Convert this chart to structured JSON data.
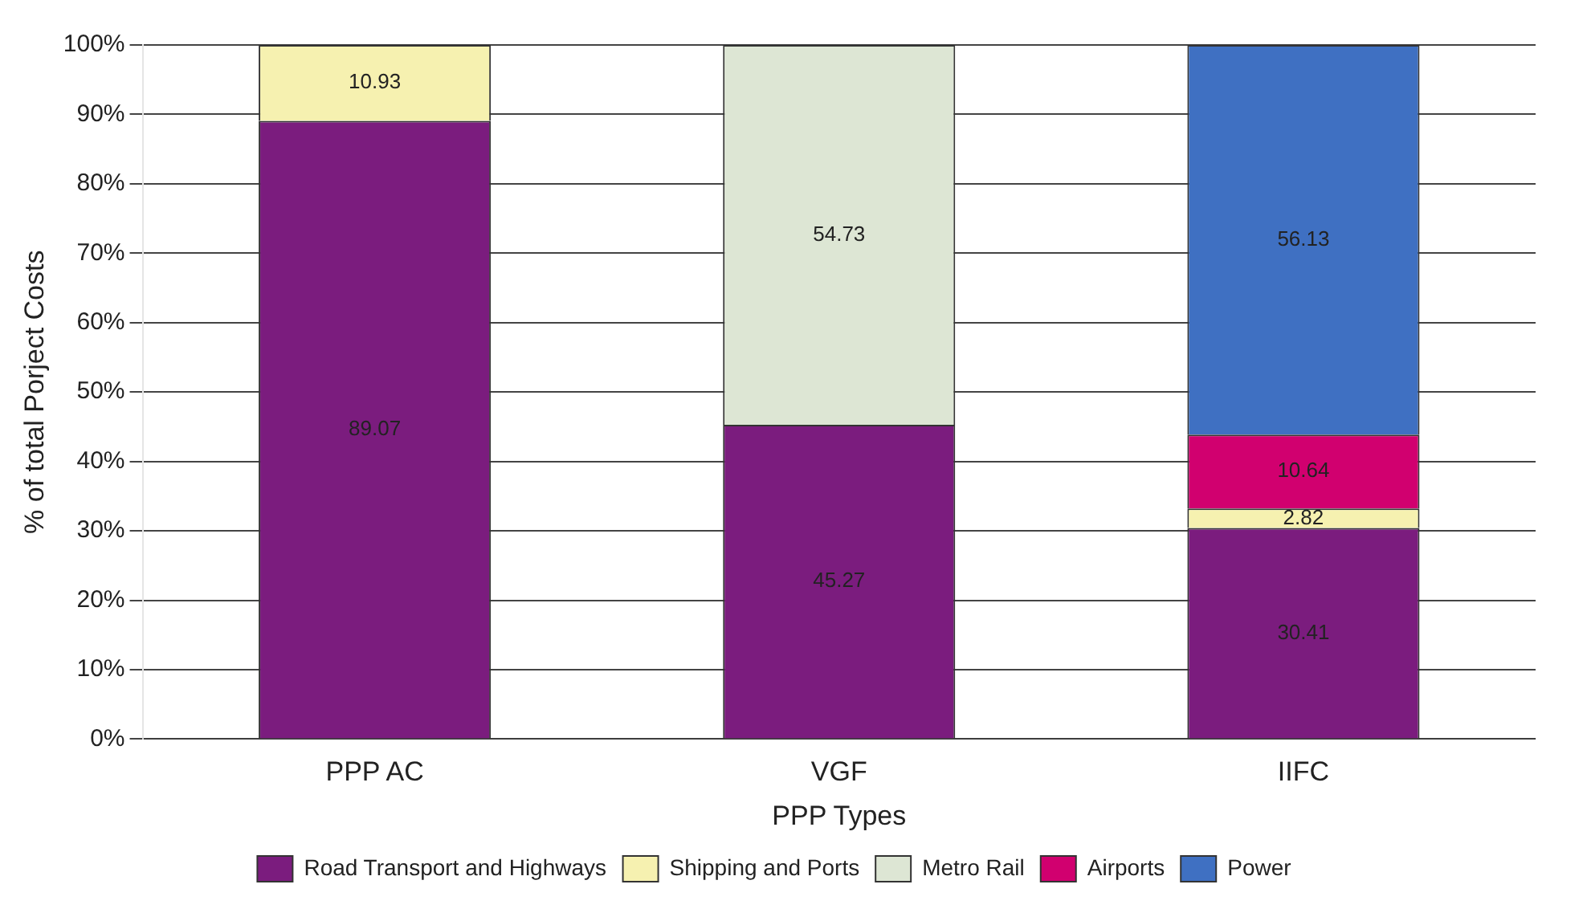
{
  "chart_data": {
    "type": "bar",
    "stacked": true,
    "xlabel": "PPP Types",
    "ylabel": "% of total Porject Costs",
    "categories": [
      "PPP AC",
      "VGF",
      "IIFC"
    ],
    "series": [
      {
        "name": "Road Transport and Highways",
        "color": "#7b1c7e",
        "values": [
          89.07,
          45.27,
          30.41
        ]
      },
      {
        "name": "Shipping and Ports",
        "color": "#f6f1b0",
        "values": [
          10.93,
          null,
          2.82
        ]
      },
      {
        "name": "Metro Rail",
        "color": "#dde6d4",
        "values": [
          null,
          54.73,
          null
        ]
      },
      {
        "name": "Airports",
        "color": "#d1006f",
        "values": [
          null,
          null,
          10.64
        ]
      },
      {
        "name": "Power",
        "color": "#3f70c2",
        "values": [
          null,
          null,
          56.13
        ]
      }
    ],
    "ylim": [
      0,
      100
    ],
    "yticks": [
      {
        "value": 0,
        "label": "0%"
      },
      {
        "value": 10,
        "label": "10%"
      },
      {
        "value": 20,
        "label": "20%"
      },
      {
        "value": 30,
        "label": "30%"
      },
      {
        "value": 40,
        "label": "40%"
      },
      {
        "value": 50,
        "label": "50%"
      },
      {
        "value": 60,
        "label": "60%"
      },
      {
        "value": 70,
        "label": "70%"
      },
      {
        "value": 80,
        "label": "80%"
      },
      {
        "value": 90,
        "label": "90%"
      },
      {
        "value": 100,
        "label": "100%"
      }
    ],
    "grid": "y",
    "legend": "bottom",
    "data_labels": true
  }
}
